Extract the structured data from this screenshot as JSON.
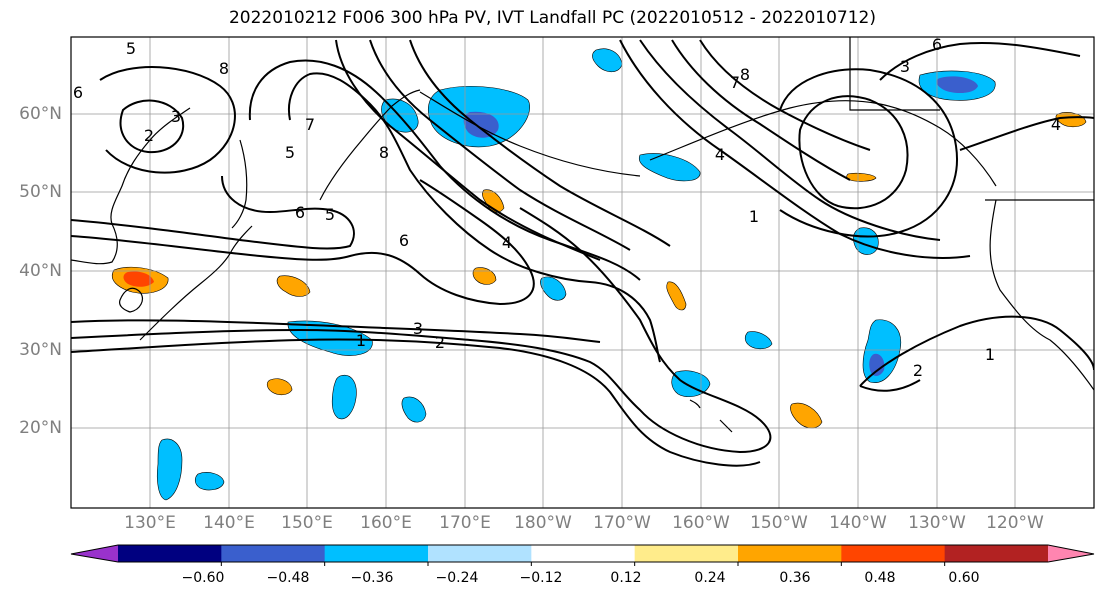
{
  "title": "2022010212 F006 300 hPa PV, IVT Landfall PC (2022010512 - 2022010712)",
  "lat_labels": [
    "60°N",
    "50°N",
    "40°N",
    "30°N",
    "20°N"
  ],
  "lon_labels": [
    "130°E",
    "140°E",
    "150°E",
    "160°E",
    "170°E",
    "180°W",
    "170°W",
    "160°W",
    "150°W",
    "140°W",
    "130°W",
    "120°W"
  ],
  "contour_labels": [
    "5",
    "6",
    "3",
    "2",
    "8",
    "7",
    "5",
    "8",
    "6",
    "5",
    "6",
    "4",
    "3",
    "2",
    "1",
    "7",
    "8",
    "1",
    "6",
    "3",
    "4",
    "1",
    "2",
    "4"
  ],
  "colorbar": {
    "ticks": [
      "−0.60",
      "−0.48",
      "−0.36",
      "−0.24",
      "−0.12",
      "0.12",
      "0.24",
      "0.36",
      "0.48",
      "0.60"
    ],
    "colors": [
      "#9932cc",
      "#000080",
      "#3a5fcd",
      "#00bfff",
      "#b0e2ff",
      "#ffffff",
      "#ffec8b",
      "#ffa500",
      "#ff4500",
      "#b22222",
      "#ff85b0"
    ]
  }
}
